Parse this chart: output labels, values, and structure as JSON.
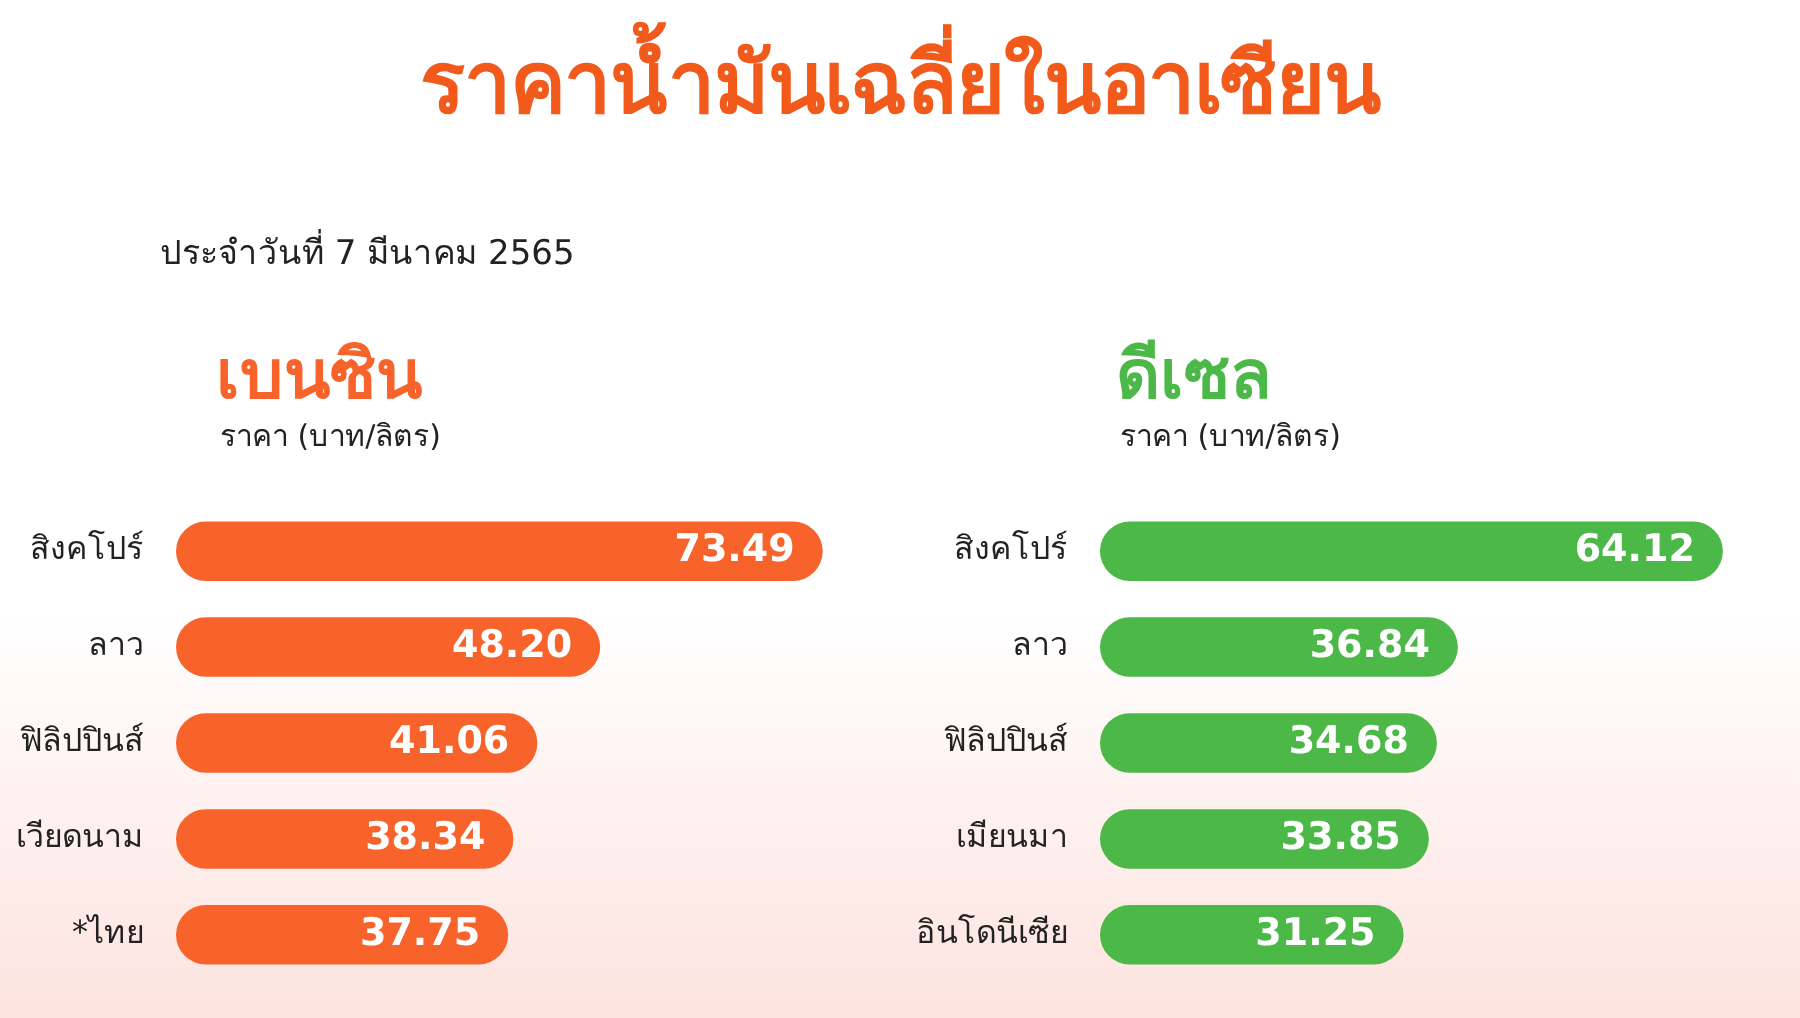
{
  "chart_data": [
    {
      "type": "bar",
      "orientation": "horizontal",
      "title": "ราคาน้ำมันเฉลี่ยในอาเซียน",
      "subtitle": "ประจำวันที่ 7 มีนาคม 2565",
      "annotations": [
        "เบนซิน"
      ],
      "xlabel": "ราคา (บาท/ลิตร)",
      "categories": [
        "สิงคโปร์",
        "ลาว",
        "ฟิลิปปินส์",
        "เวียดนาม",
        "*ไทย"
      ],
      "values": [
        73.49,
        48.2,
        41.06,
        38.34,
        37.75
      ],
      "value_labels": [
        "73.49",
        "48.20",
        "41.06",
        "38.34",
        "37.75"
      ],
      "color": "#f7632a",
      "tick_labels": "y"
    },
    {
      "type": "bar",
      "orientation": "horizontal",
      "annotations": [
        "ดีเซล"
      ],
      "xlabel": "ราคา (บาท/ลิตร)",
      "categories": [
        "สิงคโปร์",
        "ลาว",
        "ฟิลิปปินส์",
        "เมียนมา",
        "อินโดนีเซีย"
      ],
      "values": [
        64.12,
        36.84,
        34.68,
        33.85,
        31.25
      ],
      "value_labels": [
        "64.12",
        "36.84",
        "34.68",
        "33.85",
        "31.25"
      ],
      "color": "#4cb848",
      "tick_labels": "y"
    }
  ]
}
